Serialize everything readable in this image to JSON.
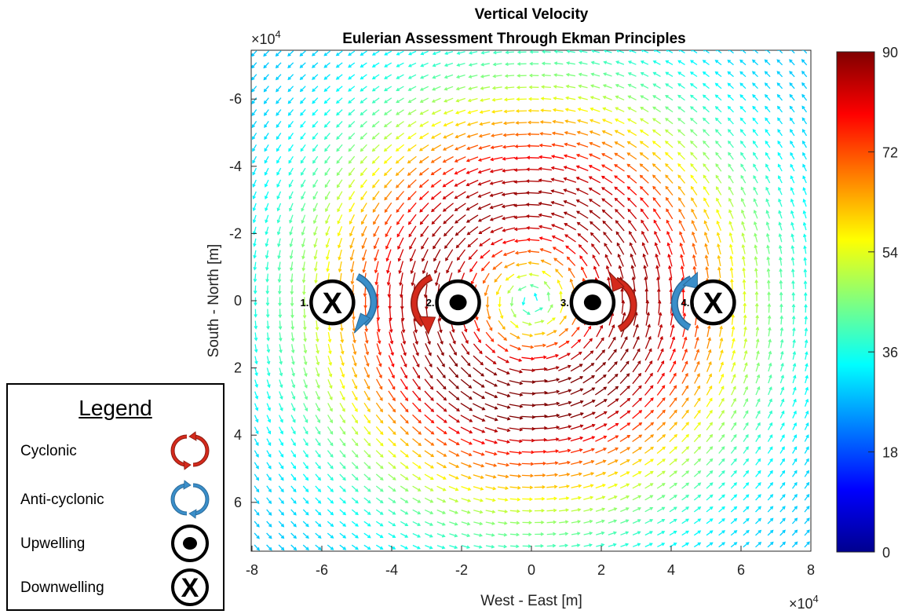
{
  "chart_data": {
    "type": "quiver",
    "title": "Vertical Velocity",
    "subtitle": "Eulerian Assessment Through Ekman Principles",
    "xlabel": "West - East [m]",
    "ylabel": "South - North [m]",
    "x_multiplier": "×10",
    "y_multiplier": "×10",
    "multiplier_exponent": "4",
    "xlim": [
      -80000,
      80000
    ],
    "ylim": [
      -75000,
      75000
    ],
    "y_reversed": true,
    "x_ticks": [
      -8,
      -6,
      -4,
      -2,
      0,
      2,
      4,
      6,
      8
    ],
    "y_ticks": [
      -6,
      -4,
      -2,
      0,
      2,
      4,
      6
    ],
    "colorbar": {
      "colormap": "jet",
      "range": [
        0,
        90
      ],
      "ticks": [
        0,
        18,
        36,
        54,
        72,
        90
      ]
    },
    "vortex_center": [
      0,
      0
    ],
    "peak_speed_radius_m": 30000,
    "markers": [
      {
        "number": "1.",
        "type": "downwelling",
        "rotation": "anti-cyclonic",
        "x": -57000,
        "y": 500
      },
      {
        "number": "2.",
        "type": "upwelling",
        "rotation": "cyclonic",
        "x": -21000,
        "y": 500
      },
      {
        "number": "3.",
        "type": "upwelling",
        "rotation": "cyclonic",
        "x": 17500,
        "y": 500
      },
      {
        "number": "4.",
        "type": "downwelling",
        "rotation": "anti-cyclonic",
        "x": 52000,
        "y": 500
      }
    ],
    "colors": {
      "cyclonic": "#d42a1c",
      "anti_cyclonic": "#3a8ec9"
    }
  },
  "legend": {
    "title": "Legend",
    "items": [
      {
        "label": "Cyclonic",
        "symbol": "cyclonic-arrows"
      },
      {
        "label": "Anti-cyclonic",
        "symbol": "anti-cyclonic-arrows"
      },
      {
        "label": "Upwelling",
        "symbol": "upwelling-dot"
      },
      {
        "label": "Downwelling",
        "symbol": "downwelling-x"
      }
    ]
  }
}
